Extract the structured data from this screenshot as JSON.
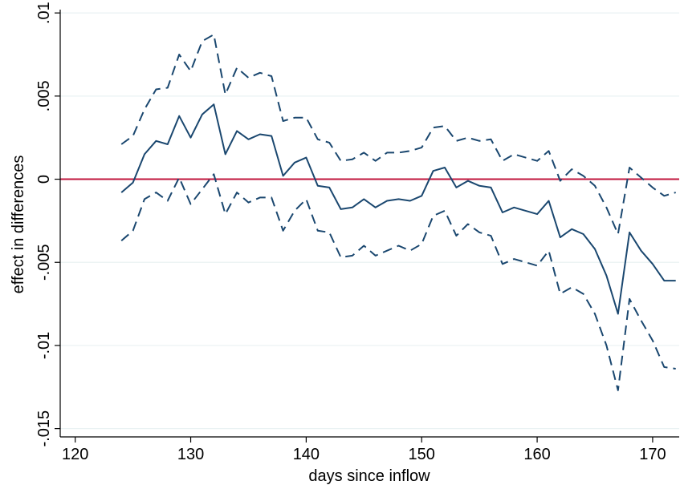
{
  "chart_data": {
    "type": "line",
    "title": "",
    "xlabel": "days since inflow",
    "ylabel": "effect in differences",
    "xlim": [
      118.7,
      172.3
    ],
    "ylim": [
      -0.0155,
      0.0102
    ],
    "xticks": [
      120,
      130,
      140,
      150,
      160,
      170
    ],
    "xtick_labels": [
      "120",
      "130",
      "140",
      "150",
      "160",
      "170"
    ],
    "yticks": [
      0.01,
      0.005,
      0,
      -0.005,
      -0.01,
      -0.015
    ],
    "ytick_labels": [
      ".01",
      ".005",
      "0",
      "-.005",
      "-.01",
      "-.015"
    ],
    "grid": true,
    "legend": "none",
    "reference_line": {
      "y": 0,
      "color": "#c0143c"
    },
    "series_color": "#1a476f",
    "x": [
      124,
      125,
      126,
      127,
      128,
      129,
      130,
      131,
      132,
      133,
      134,
      135,
      136,
      137,
      138,
      139,
      140,
      141,
      142,
      143,
      144,
      145,
      146,
      147,
      148,
      149,
      150,
      151,
      152,
      153,
      154,
      155,
      156,
      157,
      158,
      159,
      160,
      161,
      162,
      163,
      164,
      165,
      166,
      167,
      168,
      169,
      170,
      171,
      172
    ],
    "series": [
      {
        "style": "solid",
        "values": [
          -0.0008,
          -0.0002,
          0.0015,
          0.0023,
          0.0021,
          0.0038,
          0.0025,
          0.0039,
          0.0045,
          0.0015,
          0.0029,
          0.0024,
          0.0027,
          0.0026,
          0.0002,
          0.001,
          0.0013,
          -0.0004,
          -0.0005,
          -0.0018,
          -0.0017,
          -0.0012,
          -0.0017,
          -0.0013,
          -0.0012,
          -0.0013,
          -0.001,
          0.0005,
          0.0007,
          -0.0005,
          -0.0001,
          -0.0004,
          -0.0005,
          -0.002,
          -0.0017,
          -0.0019,
          -0.0021,
          -0.0013,
          -0.0035,
          -0.003,
          -0.0033,
          -0.0042,
          -0.0058,
          -0.0081,
          -0.0032,
          -0.0043,
          -0.0051,
          -0.0061,
          -0.0061
        ]
      },
      {
        "style": "dashed",
        "values": [
          0.0021,
          0.0026,
          0.0042,
          0.0054,
          0.0055,
          0.0075,
          0.0065,
          0.0083,
          0.0087,
          0.0051,
          0.0067,
          0.0061,
          0.0064,
          0.0062,
          0.0035,
          0.0037,
          0.0037,
          0.0024,
          0.0022,
          0.0011,
          0.0012,
          0.0016,
          0.0011,
          0.0016,
          0.0016,
          0.0017,
          0.0019,
          0.0031,
          0.0032,
          0.0023,
          0.0025,
          0.0023,
          0.0024,
          0.0011,
          0.0015,
          0.0013,
          0.0011,
          0.0017,
          -0.0001,
          0.0006,
          0.0002,
          -0.0004,
          -0.0017,
          -0.0033,
          0.0007,
          0.0001,
          -0.0005,
          -0.001,
          -0.0008
        ]
      },
      {
        "style": "dashed",
        "values": [
          -0.0037,
          -0.0031,
          -0.0012,
          -0.0008,
          -0.0013,
          0.0001,
          -0.0015,
          -0.0006,
          0.0003,
          -0.0021,
          -0.0008,
          -0.0014,
          -0.0011,
          -0.0011,
          -0.0031,
          -0.0019,
          -0.0012,
          -0.0031,
          -0.0032,
          -0.0047,
          -0.0046,
          -0.004,
          -0.0046,
          -0.0043,
          -0.004,
          -0.0043,
          -0.0039,
          -0.0022,
          -0.0019,
          -0.0034,
          -0.0027,
          -0.0032,
          -0.0034,
          -0.0051,
          -0.0048,
          -0.005,
          -0.0052,
          -0.0043,
          -0.0069,
          -0.0065,
          -0.0069,
          -0.0081,
          -0.01,
          -0.0127,
          -0.0072,
          -0.0085,
          -0.0097,
          -0.0113,
          -0.0114
        ]
      }
    ]
  }
}
